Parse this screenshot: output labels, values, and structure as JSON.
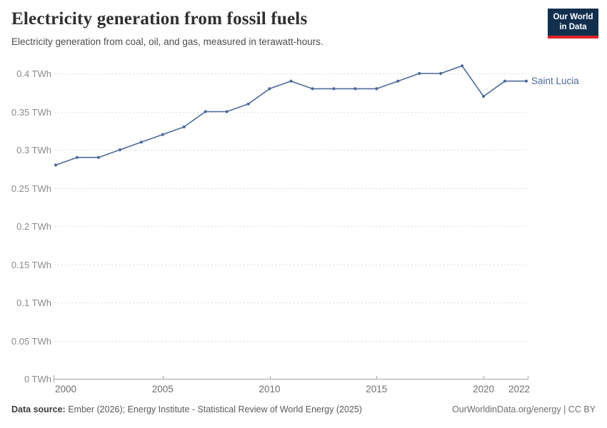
{
  "header": {
    "title": "Electricity generation from fossil fuels",
    "subtitle": "Electricity generation from coal, oil, and gas, measured in terawatt-hours."
  },
  "logo": {
    "line1": "Our World",
    "line2": "in Data",
    "bg_color": "#12304E",
    "accent_color": "#E0242A",
    "text_color": "#FFFFFF"
  },
  "chart_data": {
    "type": "line",
    "title": "Electricity generation from fossil fuels",
    "xlabel": "",
    "ylabel": "TWh",
    "x": [
      2000,
      2001,
      2002,
      2003,
      2004,
      2005,
      2006,
      2007,
      2008,
      2009,
      2010,
      2011,
      2012,
      2013,
      2014,
      2015,
      2016,
      2017,
      2018,
      2019,
      2020,
      2021,
      2022
    ],
    "series": [
      {
        "name": "Saint Lucia",
        "color": "#4C6A9C",
        "values": [
          0.28,
          0.29,
          0.29,
          0.3,
          0.31,
          0.32,
          0.33,
          0.35,
          0.35,
          0.36,
          0.38,
          0.39,
          0.38,
          0.38,
          0.38,
          0.38,
          0.39,
          0.4,
          0.4,
          0.41,
          0.37,
          0.39,
          0.39
        ]
      }
    ],
    "xlim": [
      2000,
      2022
    ],
    "ylim": [
      0,
      0.4
    ],
    "yticks": [
      {
        "value": 0,
        "label": "0 TWh"
      },
      {
        "value": 0.05,
        "label": "0.05 TWh"
      },
      {
        "value": 0.1,
        "label": "0.1 TWh"
      },
      {
        "value": 0.15,
        "label": "0.15 TWh"
      },
      {
        "value": 0.2,
        "label": "0.2 TWh"
      },
      {
        "value": 0.25,
        "label": "0.25 TWh"
      },
      {
        "value": 0.3,
        "label": "0.3 TWh"
      },
      {
        "value": 0.35,
        "label": "0.35 TWh"
      },
      {
        "value": 0.4,
        "label": "0.4 TWh"
      }
    ],
    "xticks": [
      {
        "value": 2000,
        "label": "2000"
      },
      {
        "value": 2005,
        "label": "2005"
      },
      {
        "value": 2010,
        "label": "2010"
      },
      {
        "value": 2015,
        "label": "2015"
      },
      {
        "value": 2020,
        "label": "2020"
      },
      {
        "value": 2022,
        "label": "2022"
      }
    ],
    "grid": "horizontal-dashed",
    "legend_position": "end-of-line",
    "marker": "dot"
  },
  "colors": {
    "line": "#4C6A9C",
    "grid": "#DEDEDE",
    "axis": "#A5A5A5",
    "y_tick_label": "#8B8B8B",
    "x_tick_label": "#6F6F6F"
  },
  "footer": {
    "source_prefix": "Data source:",
    "source_text": " Ember (2026); Energy Institute - Statistical Review of World Energy (2025)",
    "rights": "OurWorldinData.org/energy | CC BY"
  }
}
